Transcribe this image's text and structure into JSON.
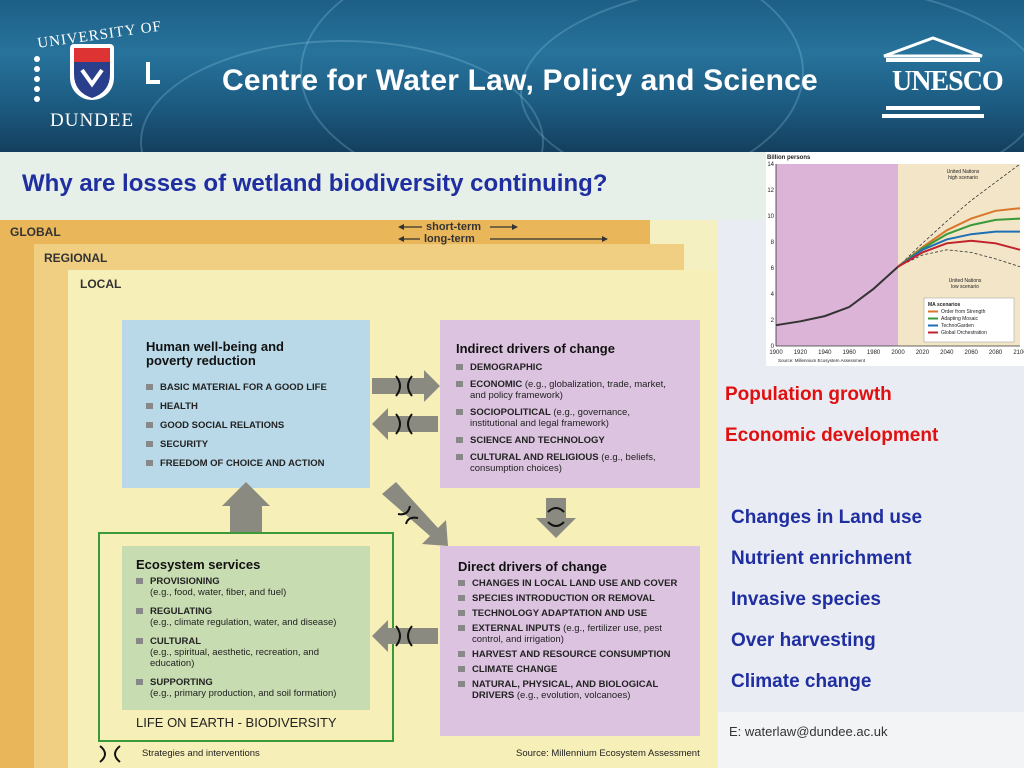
{
  "banner": {
    "uni_top": "UNIVERSITY OF",
    "uni_bottom": "DUNDEE",
    "title": "Centre for Water Law, Policy and Science",
    "unesco": "UNESCO"
  },
  "slide_title": "Why are losses of wetland biodiversity continuing?",
  "diagram": {
    "scales": {
      "global": "GLOBAL",
      "regional": "REGIONAL",
      "local": "LOCAL",
      "short_term": "short-term",
      "long_term": "long-term"
    },
    "wellbeing": {
      "title": "Human well-being and poverty reduction",
      "items": [
        "BASIC MATERIAL FOR A GOOD LIFE",
        "HEALTH",
        "GOOD SOCIAL RELATIONS",
        "SECURITY",
        "FREEDOM OF CHOICE AND ACTION"
      ]
    },
    "indirect": {
      "title": "Indirect drivers of change",
      "items": [
        {
          "head": "DEMOGRAPHIC",
          "note": ""
        },
        {
          "head": "ECONOMIC",
          "note": "(e.g., globalization, trade, market, and policy framework)"
        },
        {
          "head": "SOCIOPOLITICAL",
          "note": "(e.g., governance, institutional and legal framework)"
        },
        {
          "head": "SCIENCE AND TECHNOLOGY",
          "note": ""
        },
        {
          "head": "CULTURAL AND RELIGIOUS",
          "note": "(e.g., beliefs, consumption choices)"
        }
      ]
    },
    "ecosystem": {
      "title": "Ecosystem services",
      "items": [
        {
          "head": "PROVISIONING",
          "note": "(e.g., food, water, fiber, and fuel)"
        },
        {
          "head": "REGULATING",
          "note": "(e.g., climate regulation, water, and disease)"
        },
        {
          "head": "CULTURAL",
          "note": "(e.g., spiritual, aesthetic, recreation, and education)"
        },
        {
          "head": "SUPPORTING",
          "note": "(e.g., primary production, and soil formation)"
        }
      ],
      "footer": "LIFE ON EARTH - BIODIVERSITY"
    },
    "direct": {
      "title": "Direct drivers of change",
      "items": [
        {
          "head": "CHANGES IN LOCAL LAND USE AND COVER",
          "note": ""
        },
        {
          "head": "SPECIES INTRODUCTION OR REMOVAL",
          "note": ""
        },
        {
          "head": "TECHNOLOGY ADAPTATION AND USE",
          "note": ""
        },
        {
          "head": "EXTERNAL INPUTS",
          "note": "(e.g., fertilizer use, pest control, and irrigation)"
        },
        {
          "head": "HARVEST AND RESOURCE CONSUMPTION",
          "note": ""
        },
        {
          "head": "CLIMATE CHANGE",
          "note": ""
        },
        {
          "head": "NATURAL, PHYSICAL, AND BIOLOGICAL DRIVERS",
          "note": "(e.g., evolution, volcanoes)"
        }
      ]
    },
    "legend_strategies": "Strategies and interventions",
    "source": "Source: Millennium Ecosystem Assessment"
  },
  "chart_data": {
    "type": "line",
    "ylabel": "Billion persons",
    "ylim": [
      0,
      14
    ],
    "yticks": [
      0,
      2,
      4,
      6,
      8,
      10,
      12,
      14
    ],
    "xlim": [
      1900,
      2100
    ],
    "xticks": [
      1900,
      1920,
      1940,
      1960,
      1980,
      2000,
      2020,
      2040,
      2060,
      2080,
      2100
    ],
    "historical": {
      "x": [
        1900,
        1920,
        1940,
        1960,
        1980,
        2000
      ],
      "y": [
        1.6,
        1.9,
        2.3,
        3.0,
        4.4,
        6.1
      ]
    },
    "series": [
      {
        "name": "Order from Strength",
        "color": "#d9762a",
        "x": [
          2000,
          2020,
          2040,
          2060,
          2080,
          2100
        ],
        "y": [
          6.1,
          7.6,
          8.9,
          9.8,
          10.4,
          10.6
        ]
      },
      {
        "name": "Adapting Mosaic",
        "color": "#3a9a3a",
        "x": [
          2000,
          2020,
          2040,
          2060,
          2080,
          2100
        ],
        "y": [
          6.1,
          7.5,
          8.6,
          9.3,
          9.7,
          9.8
        ]
      },
      {
        "name": "TechnoGarden",
        "color": "#1f6fb5",
        "x": [
          2000,
          2020,
          2040,
          2060,
          2080,
          2100
        ],
        "y": [
          6.1,
          7.4,
          8.2,
          8.6,
          8.8,
          8.8
        ]
      },
      {
        "name": "Global Orchestration",
        "color": "#c0232b",
        "x": [
          2000,
          2020,
          2040,
          2060,
          2080,
          2100
        ],
        "y": [
          6.1,
          7.2,
          7.9,
          8.1,
          7.9,
          7.4
        ]
      }
    ],
    "un_high": {
      "label": "United Nations high scenario",
      "x": [
        2000,
        2020,
        2040,
        2060,
        2080,
        2100
      ],
      "y": [
        6.1,
        7.9,
        9.6,
        11.2,
        12.6,
        14.0
      ]
    },
    "un_low": {
      "label": "United Nations low scenario",
      "x": [
        2000,
        2020,
        2040,
        2060,
        2080,
        2100
      ],
      "y": [
        6.1,
        7.0,
        7.4,
        7.2,
        6.7,
        6.1
      ]
    },
    "legend_title": "MA scenarios",
    "source": "Source: Millennium Ecosystem Assessment",
    "highlight_until": 2000
  },
  "red_points": [
    "Population growth",
    "Economic development"
  ],
  "blue_points": [
    "Changes in Land use",
    "Nutrient enrichment",
    "Invasive species",
    "Over harvesting",
    "Climate change"
  ],
  "email": "E: waterlaw@dundee.ac.uk",
  "colors": {
    "title_blue": "#1f2ea0",
    "red": "#e01010",
    "banner": "#1d5f86"
  }
}
